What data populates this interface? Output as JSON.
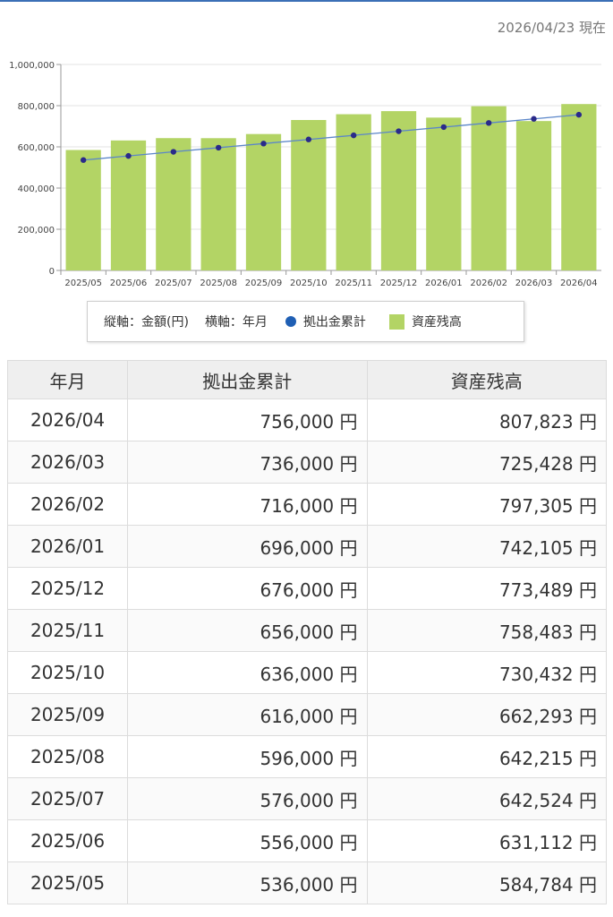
{
  "as_of": "2026/04/23 現在",
  "chart_data": {
    "type": "bar+line",
    "categories": [
      "2025/05",
      "2025/06",
      "2025/07",
      "2025/08",
      "2025/09",
      "2025/10",
      "2025/11",
      "2025/12",
      "2026/01",
      "2026/02",
      "2026/03",
      "2026/04"
    ],
    "series": [
      {
        "name": "資産残高",
        "type": "bar",
        "color": "#b3d465",
        "values": [
          584784,
          631112,
          642524,
          642215,
          662293,
          730432,
          758483,
          773489,
          742105,
          797305,
          725428,
          807823
        ]
      },
      {
        "name": "拠出金累計",
        "type": "line",
        "color": "#1f5fb4",
        "values": [
          536000,
          556000,
          576000,
          596000,
          616000,
          636000,
          656000,
          676000,
          696000,
          716000,
          736000,
          756000
        ]
      }
    ],
    "ylim": [
      0,
      1000000
    ],
    "yticks": [
      "0",
      "200,000",
      "400,000",
      "600,000",
      "800,000",
      "1,000,000"
    ],
    "grid": true,
    "legend_position": "bottom-center"
  },
  "legend": {
    "axis_y": "縦軸：金額(円)",
    "axis_x": "横軸：年月",
    "line_label": "拠出金累計",
    "bar_label": "資産残高"
  },
  "table": {
    "headers": [
      "年月",
      "拠出金累計",
      "資産残高"
    ],
    "rows": [
      [
        "2026/04",
        "756,000 円",
        "807,823 円"
      ],
      [
        "2026/03",
        "736,000 円",
        "725,428 円"
      ],
      [
        "2026/02",
        "716,000 円",
        "797,305 円"
      ],
      [
        "2026/01",
        "696,000 円",
        "742,105 円"
      ],
      [
        "2025/12",
        "676,000 円",
        "773,489 円"
      ],
      [
        "2025/11",
        "656,000 円",
        "758,483 円"
      ],
      [
        "2025/10",
        "636,000 円",
        "730,432 円"
      ],
      [
        "2025/09",
        "616,000 円",
        "662,293 円"
      ],
      [
        "2025/08",
        "596,000 円",
        "642,215 円"
      ],
      [
        "2025/07",
        "576,000 円",
        "642,524 円"
      ],
      [
        "2025/06",
        "556,000 円",
        "631,112 円"
      ],
      [
        "2025/05",
        "536,000 円",
        "584,784 円"
      ]
    ]
  }
}
